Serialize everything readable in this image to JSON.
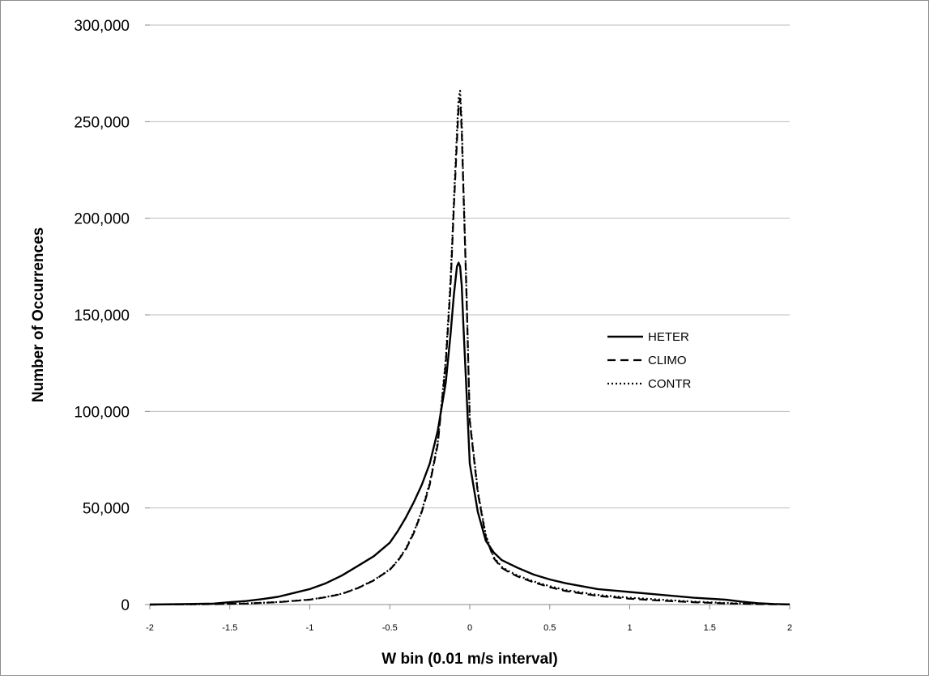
{
  "chart_data": {
    "type": "line",
    "title": "",
    "xlabel": "W bin (0.01 m/s interval)",
    "ylabel": "Number of Occurrences",
    "xlim": [
      -2,
      2
    ],
    "ylim": [
      0,
      300000
    ],
    "x_ticks": [
      -2,
      -1.5,
      -1,
      -0.5,
      0,
      0.5,
      1,
      1.5,
      2
    ],
    "x_tick_labels": [
      "-2",
      "-1.5",
      "-1",
      "-0.5",
      "0",
      "0.5",
      "1",
      "1.5",
      "2"
    ],
    "y_ticks": [
      0,
      50000,
      100000,
      150000,
      200000,
      250000,
      300000
    ],
    "y_tick_labels": [
      "0",
      "50,000",
      "100,000",
      "150,000",
      "200,000",
      "250,000",
      "300,000"
    ],
    "grid": "horizontal",
    "legend_position": "right-middle",
    "series": [
      {
        "name": "HETER",
        "style": "solid",
        "color": "#000000",
        "x": [
          -2,
          -1.8,
          -1.6,
          -1.5,
          -1.4,
          -1.3,
          -1.2,
          -1.1,
          -1.0,
          -0.9,
          -0.8,
          -0.7,
          -0.6,
          -0.5,
          -0.45,
          -0.4,
          -0.35,
          -0.3,
          -0.25,
          -0.2,
          -0.15,
          -0.12,
          -0.1,
          -0.08,
          -0.07,
          -0.06,
          -0.05,
          -0.04,
          -0.02,
          0,
          0.05,
          0.1,
          0.15,
          0.2,
          0.25,
          0.3,
          0.4,
          0.5,
          0.6,
          0.8,
          1.0,
          1.2,
          1.4,
          1.6,
          1.7,
          1.8,
          1.9,
          2.0
        ],
        "y": [
          0,
          200,
          500,
          1200,
          1800,
          2800,
          4000,
          6000,
          8000,
          11000,
          15000,
          20000,
          25000,
          32000,
          38000,
          45000,
          53000,
          62000,
          73000,
          90000,
          115000,
          140000,
          160000,
          175000,
          177000,
          175000,
          165000,
          145000,
          110000,
          73000,
          48000,
          33000,
          27000,
          23000,
          21000,
          19000,
          15500,
          13000,
          11000,
          8000,
          6500,
          5000,
          3500,
          2500,
          1500,
          700,
          300,
          100
        ]
      },
      {
        "name": "CLIMO",
        "style": "dashed",
        "color": "#000000",
        "x": [
          -2,
          -1.8,
          -1.6,
          -1.4,
          -1.2,
          -1.0,
          -0.9,
          -0.8,
          -0.7,
          -0.6,
          -0.5,
          -0.45,
          -0.4,
          -0.35,
          -0.3,
          -0.25,
          -0.2,
          -0.15,
          -0.12,
          -0.1,
          -0.08,
          -0.07,
          -0.06,
          -0.05,
          -0.04,
          -0.02,
          0,
          0.05,
          0.1,
          0.15,
          0.2,
          0.25,
          0.3,
          0.4,
          0.5,
          0.6,
          0.8,
          1.0,
          1.2,
          1.4,
          1.6,
          1.8,
          2.0
        ],
        "y": [
          0,
          100,
          200,
          500,
          1200,
          2500,
          3800,
          5500,
          8500,
          12500,
          18000,
          22500,
          28500,
          37000,
          48000,
          62000,
          83000,
          125000,
          165000,
          205000,
          240000,
          258000,
          262000,
          245000,
          215000,
          160000,
          95000,
          58000,
          35000,
          24000,
          19000,
          16500,
          14500,
          11500,
          9000,
          7000,
          4500,
          3000,
          2000,
          1200,
          600,
          200,
          50
        ]
      },
      {
        "name": "CONTR",
        "style": "dotted",
        "color": "#000000",
        "x": [
          -2,
          -1.8,
          -1.6,
          -1.4,
          -1.2,
          -1.0,
          -0.9,
          -0.8,
          -0.7,
          -0.6,
          -0.5,
          -0.45,
          -0.4,
          -0.35,
          -0.3,
          -0.25,
          -0.2,
          -0.15,
          -0.12,
          -0.1,
          -0.08,
          -0.07,
          -0.06,
          -0.05,
          -0.04,
          -0.02,
          0,
          0.05,
          0.1,
          0.15,
          0.2,
          0.25,
          0.3,
          0.4,
          0.5,
          0.6,
          0.8,
          1.0,
          1.2,
          1.4,
          1.6,
          1.8,
          2.0
        ],
        "y": [
          0,
          100,
          250,
          550,
          1300,
          2600,
          3900,
          5600,
          8600,
          12600,
          18200,
          22800,
          29000,
          37500,
          48500,
          63000,
          84000,
          127000,
          168000,
          208000,
          245000,
          262000,
          266000,
          250000,
          218000,
          162000,
          96000,
          59000,
          36000,
          24500,
          19500,
          17000,
          15000,
          12000,
          9500,
          7500,
          5000,
          3500,
          2500,
          1500,
          800,
          300,
          80
        ]
      }
    ]
  }
}
